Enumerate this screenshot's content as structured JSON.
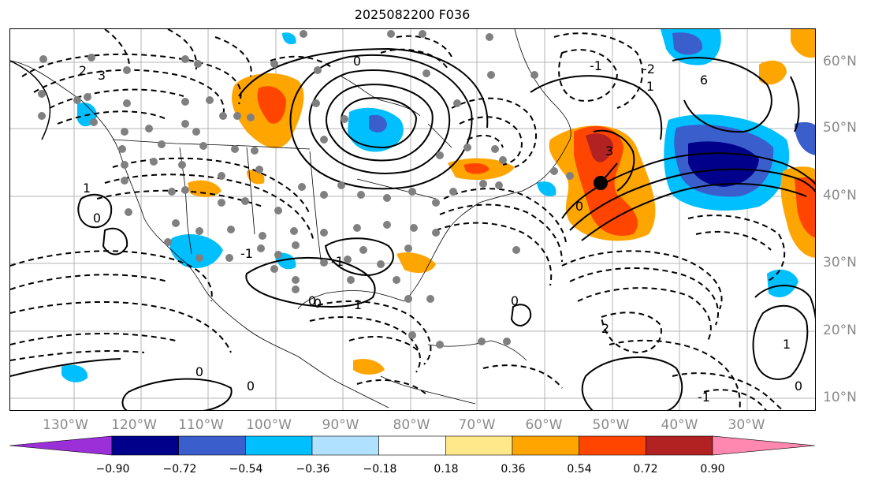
{
  "title": "2025082200 F036",
  "map": {
    "lon_labels": [
      "130°W",
      "120°W",
      "110°W",
      "100°W",
      "90°W",
      "80°W",
      "70°W",
      "60°W",
      "50°W",
      "40°W",
      "30°W"
    ],
    "lat_labels": [
      "60°N",
      "50°N",
      "40°N",
      "30°N",
      "20°N",
      "10°N"
    ],
    "contour_labels": [
      "2",
      "3",
      "0",
      "-1",
      "1",
      "-2",
      "3",
      "6",
      "0",
      "1",
      "0",
      "-1",
      "2",
      "0",
      "0",
      "1",
      "0",
      "-1",
      "0",
      "1",
      "0",
      "-1",
      "0"
    ],
    "colors": {
      "grid": "#b4b4b4",
      "contour": "#000000",
      "coast": "#000000",
      "dots": "#808080"
    }
  },
  "colorbar": {
    "ticks": [
      "−0.90",
      "−0.72",
      "−0.54",
      "−0.36",
      "−0.18",
      "0.18",
      "0.36",
      "0.54",
      "0.72",
      "0.90"
    ],
    "colors": [
      "#9b30d9",
      "#00008b",
      "#3a5fcd",
      "#00bfff",
      "#b0e2ff",
      "#ffffff",
      "#ffe88a",
      "#ffa500",
      "#ff4500",
      "#b22222",
      "#ff88b0"
    ]
  }
}
